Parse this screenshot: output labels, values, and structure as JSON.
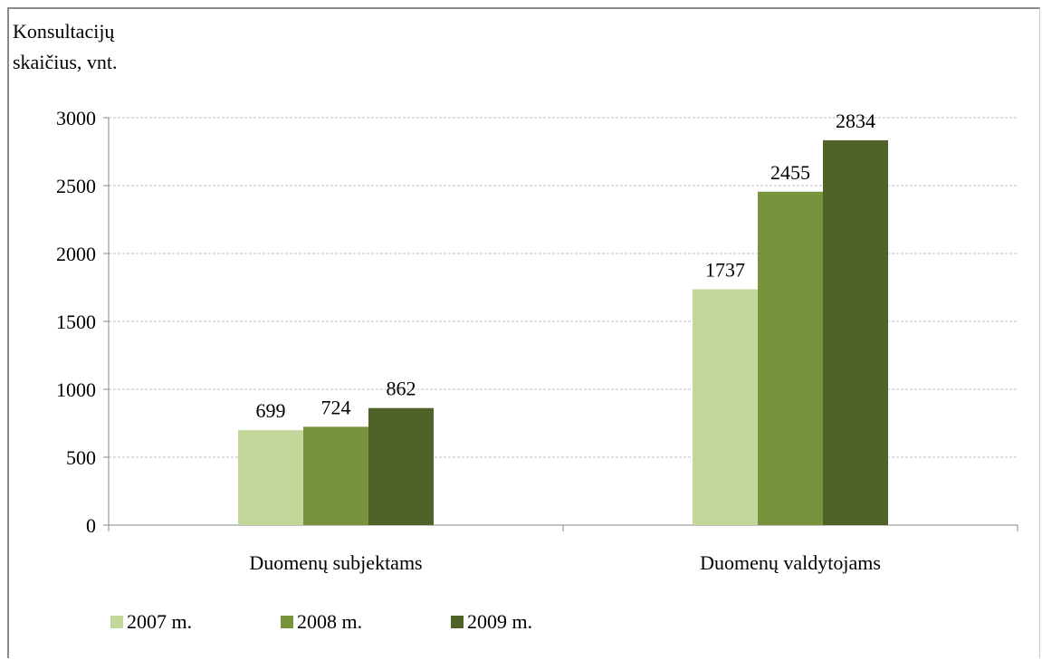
{
  "chart_data": {
    "type": "bar",
    "ylabel_lines": [
      "Konsultacijų",
      "skaičius, vnt."
    ],
    "categories": [
      "Duomenų subjektams",
      "Duomenų valdytojams"
    ],
    "series": [
      {
        "name": "2007 m.",
        "color": "#c4d79b",
        "values": [
          699,
          1737
        ]
      },
      {
        "name": "2008 m.",
        "color": "#77933c",
        "values": [
          724,
          2455
        ]
      },
      {
        "name": "2009 m.",
        "color": "#4f6228",
        "values": [
          862,
          2834
        ]
      }
    ],
    "ylim": [
      0,
      3000
    ],
    "yticks": [
      0,
      500,
      1000,
      1500,
      2000,
      2500,
      3000
    ],
    "grid": true,
    "gridline_style": "dashed",
    "legend_position": "bottom-left",
    "data_labels": true
  }
}
